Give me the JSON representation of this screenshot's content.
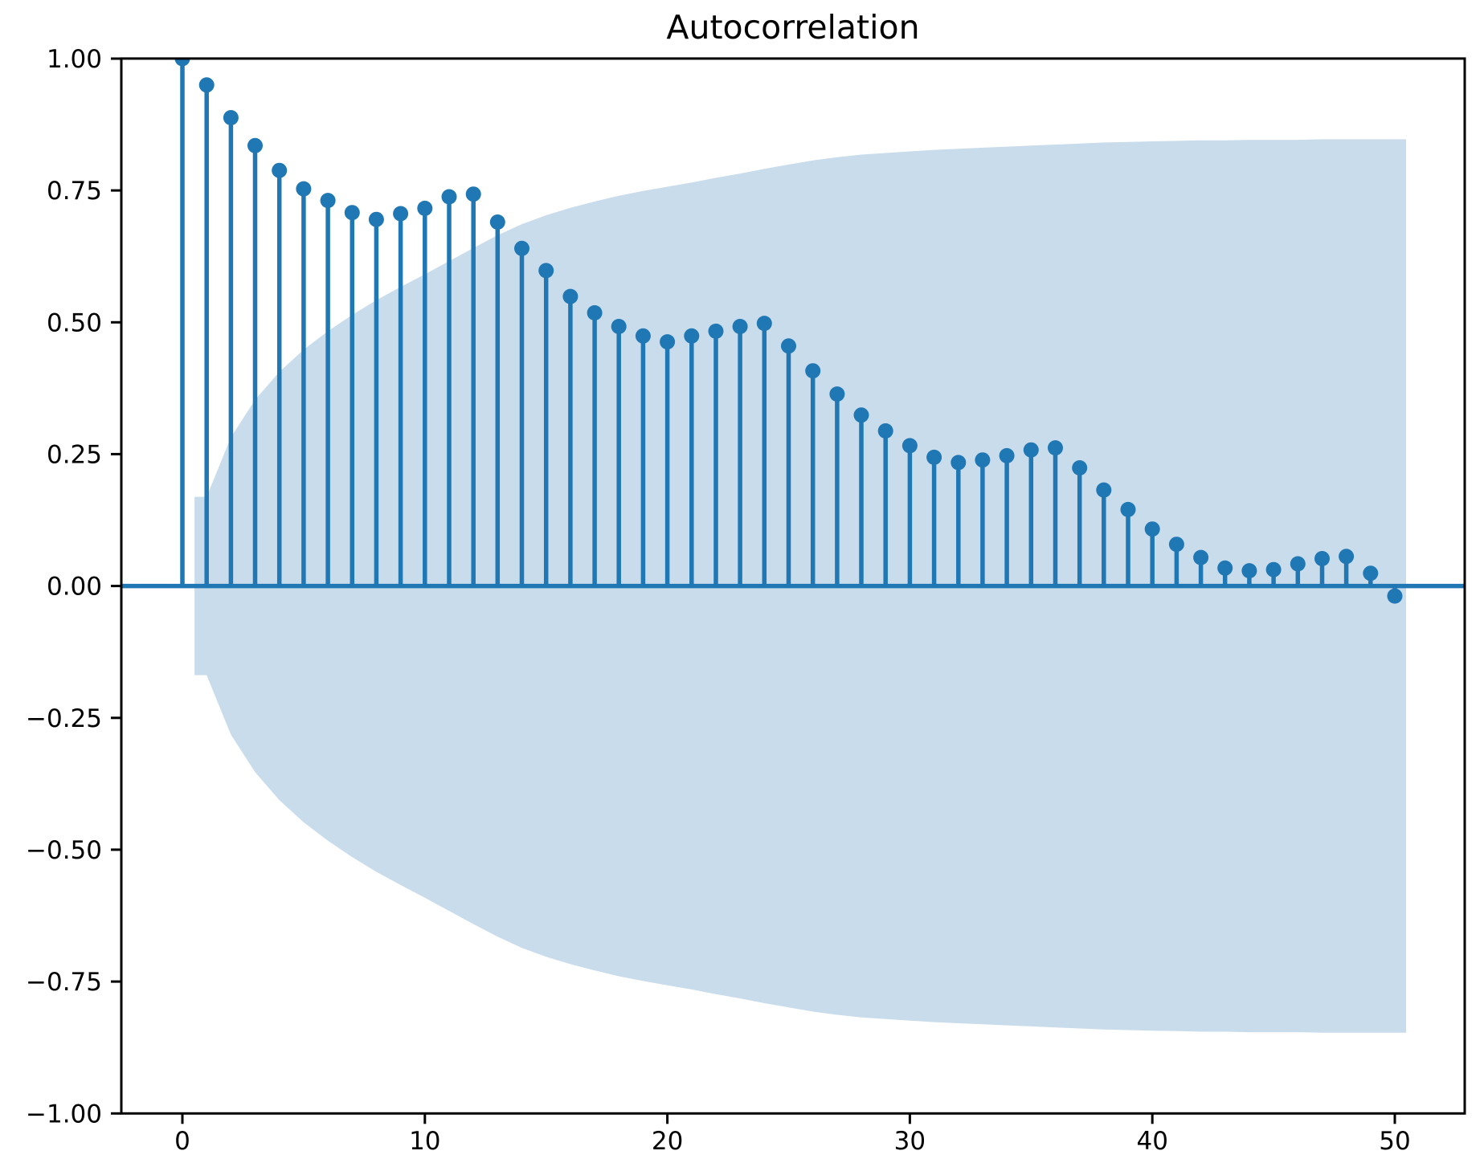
{
  "figure": {
    "background": "#ffffff"
  },
  "chart_data": {
    "type": "stem",
    "subtype": "autocorrelation-function",
    "title": "Autocorrelation",
    "xlabel": "",
    "ylabel": "",
    "xlim": [
      -2.5,
      52.5
    ],
    "ylim": [
      -1.0,
      1.0
    ],
    "grid": false,
    "x": [
      0,
      1,
      2,
      3,
      4,
      5,
      6,
      7,
      8,
      9,
      10,
      11,
      12,
      13,
      14,
      15,
      16,
      17,
      18,
      19,
      20,
      21,
      22,
      23,
      24,
      25,
      26,
      27,
      28,
      29,
      30,
      31,
      32,
      33,
      34,
      35,
      36,
      37,
      38,
      39,
      40,
      41,
      42,
      43,
      44,
      45,
      46,
      47,
      48,
      49,
      50
    ],
    "acf_values": [
      1.0,
      0.95,
      0.888,
      0.835,
      0.788,
      0.753,
      0.731,
      0.708,
      0.695,
      0.706,
      0.716,
      0.738,
      0.743,
      0.69,
      0.64,
      0.598,
      0.549,
      0.518,
      0.492,
      0.474,
      0.463,
      0.474,
      0.483,
      0.492,
      0.498,
      0.455,
      0.408,
      0.364,
      0.324,
      0.294,
      0.266,
      0.244,
      0.234,
      0.239,
      0.247,
      0.258,
      0.262,
      0.224,
      0.182,
      0.145,
      0.108,
      0.079,
      0.054,
      0.034,
      0.029,
      0.031,
      0.042,
      0.052,
      0.056,
      0.024,
      -0.019
    ],
    "confidence_band": {
      "symmetric_about_zero": true,
      "starts_at_lag": 0.5,
      "lags": [
        1,
        2,
        3,
        4,
        5,
        6,
        7,
        8,
        9,
        10,
        11,
        12,
        13,
        14,
        15,
        16,
        17,
        18,
        19,
        20,
        21,
        22,
        23,
        24,
        25,
        26,
        27,
        28,
        29,
        30,
        31,
        32,
        33,
        34,
        35,
        36,
        37,
        38,
        39,
        40,
        41,
        42,
        43,
        44,
        45,
        46,
        47,
        48,
        49,
        50
      ],
      "upper": [
        0.169,
        0.282,
        0.353,
        0.406,
        0.448,
        0.483,
        0.514,
        0.542,
        0.567,
        0.591,
        0.616,
        0.641,
        0.665,
        0.686,
        0.703,
        0.717,
        0.729,
        0.74,
        0.749,
        0.757,
        0.765,
        0.774,
        0.782,
        0.791,
        0.799,
        0.807,
        0.813,
        0.818,
        0.821,
        0.824,
        0.827,
        0.829,
        0.831,
        0.833,
        0.835,
        0.837,
        0.839,
        0.841,
        0.842,
        0.843,
        0.844,
        0.845,
        0.845,
        0.846,
        0.846,
        0.846,
        0.847,
        0.847,
        0.847,
        0.847
      ]
    },
    "x_ticks": [
      0,
      10,
      20,
      30,
      40,
      50
    ],
    "x_tick_labels": [
      "0",
      "10",
      "20",
      "30",
      "40",
      "50"
    ],
    "y_ticks": [
      1.0,
      0.75,
      0.5,
      0.25,
      0.0,
      -0.25,
      -0.5,
      -0.75,
      -1.0
    ],
    "y_tick_labels": [
      "1.00",
      "0.75",
      "0.50",
      "0.25",
      "0.00",
      "−0.25",
      "−0.50",
      "−0.75",
      "−1.00"
    ],
    "legend": false,
    "colors": {
      "stem": "#1f77b4",
      "marker": "#1f77b4",
      "zero_line": "#1f77b4",
      "confidence_band": "#c9dcec",
      "axes": "#000000",
      "background": "#ffffff"
    }
  }
}
